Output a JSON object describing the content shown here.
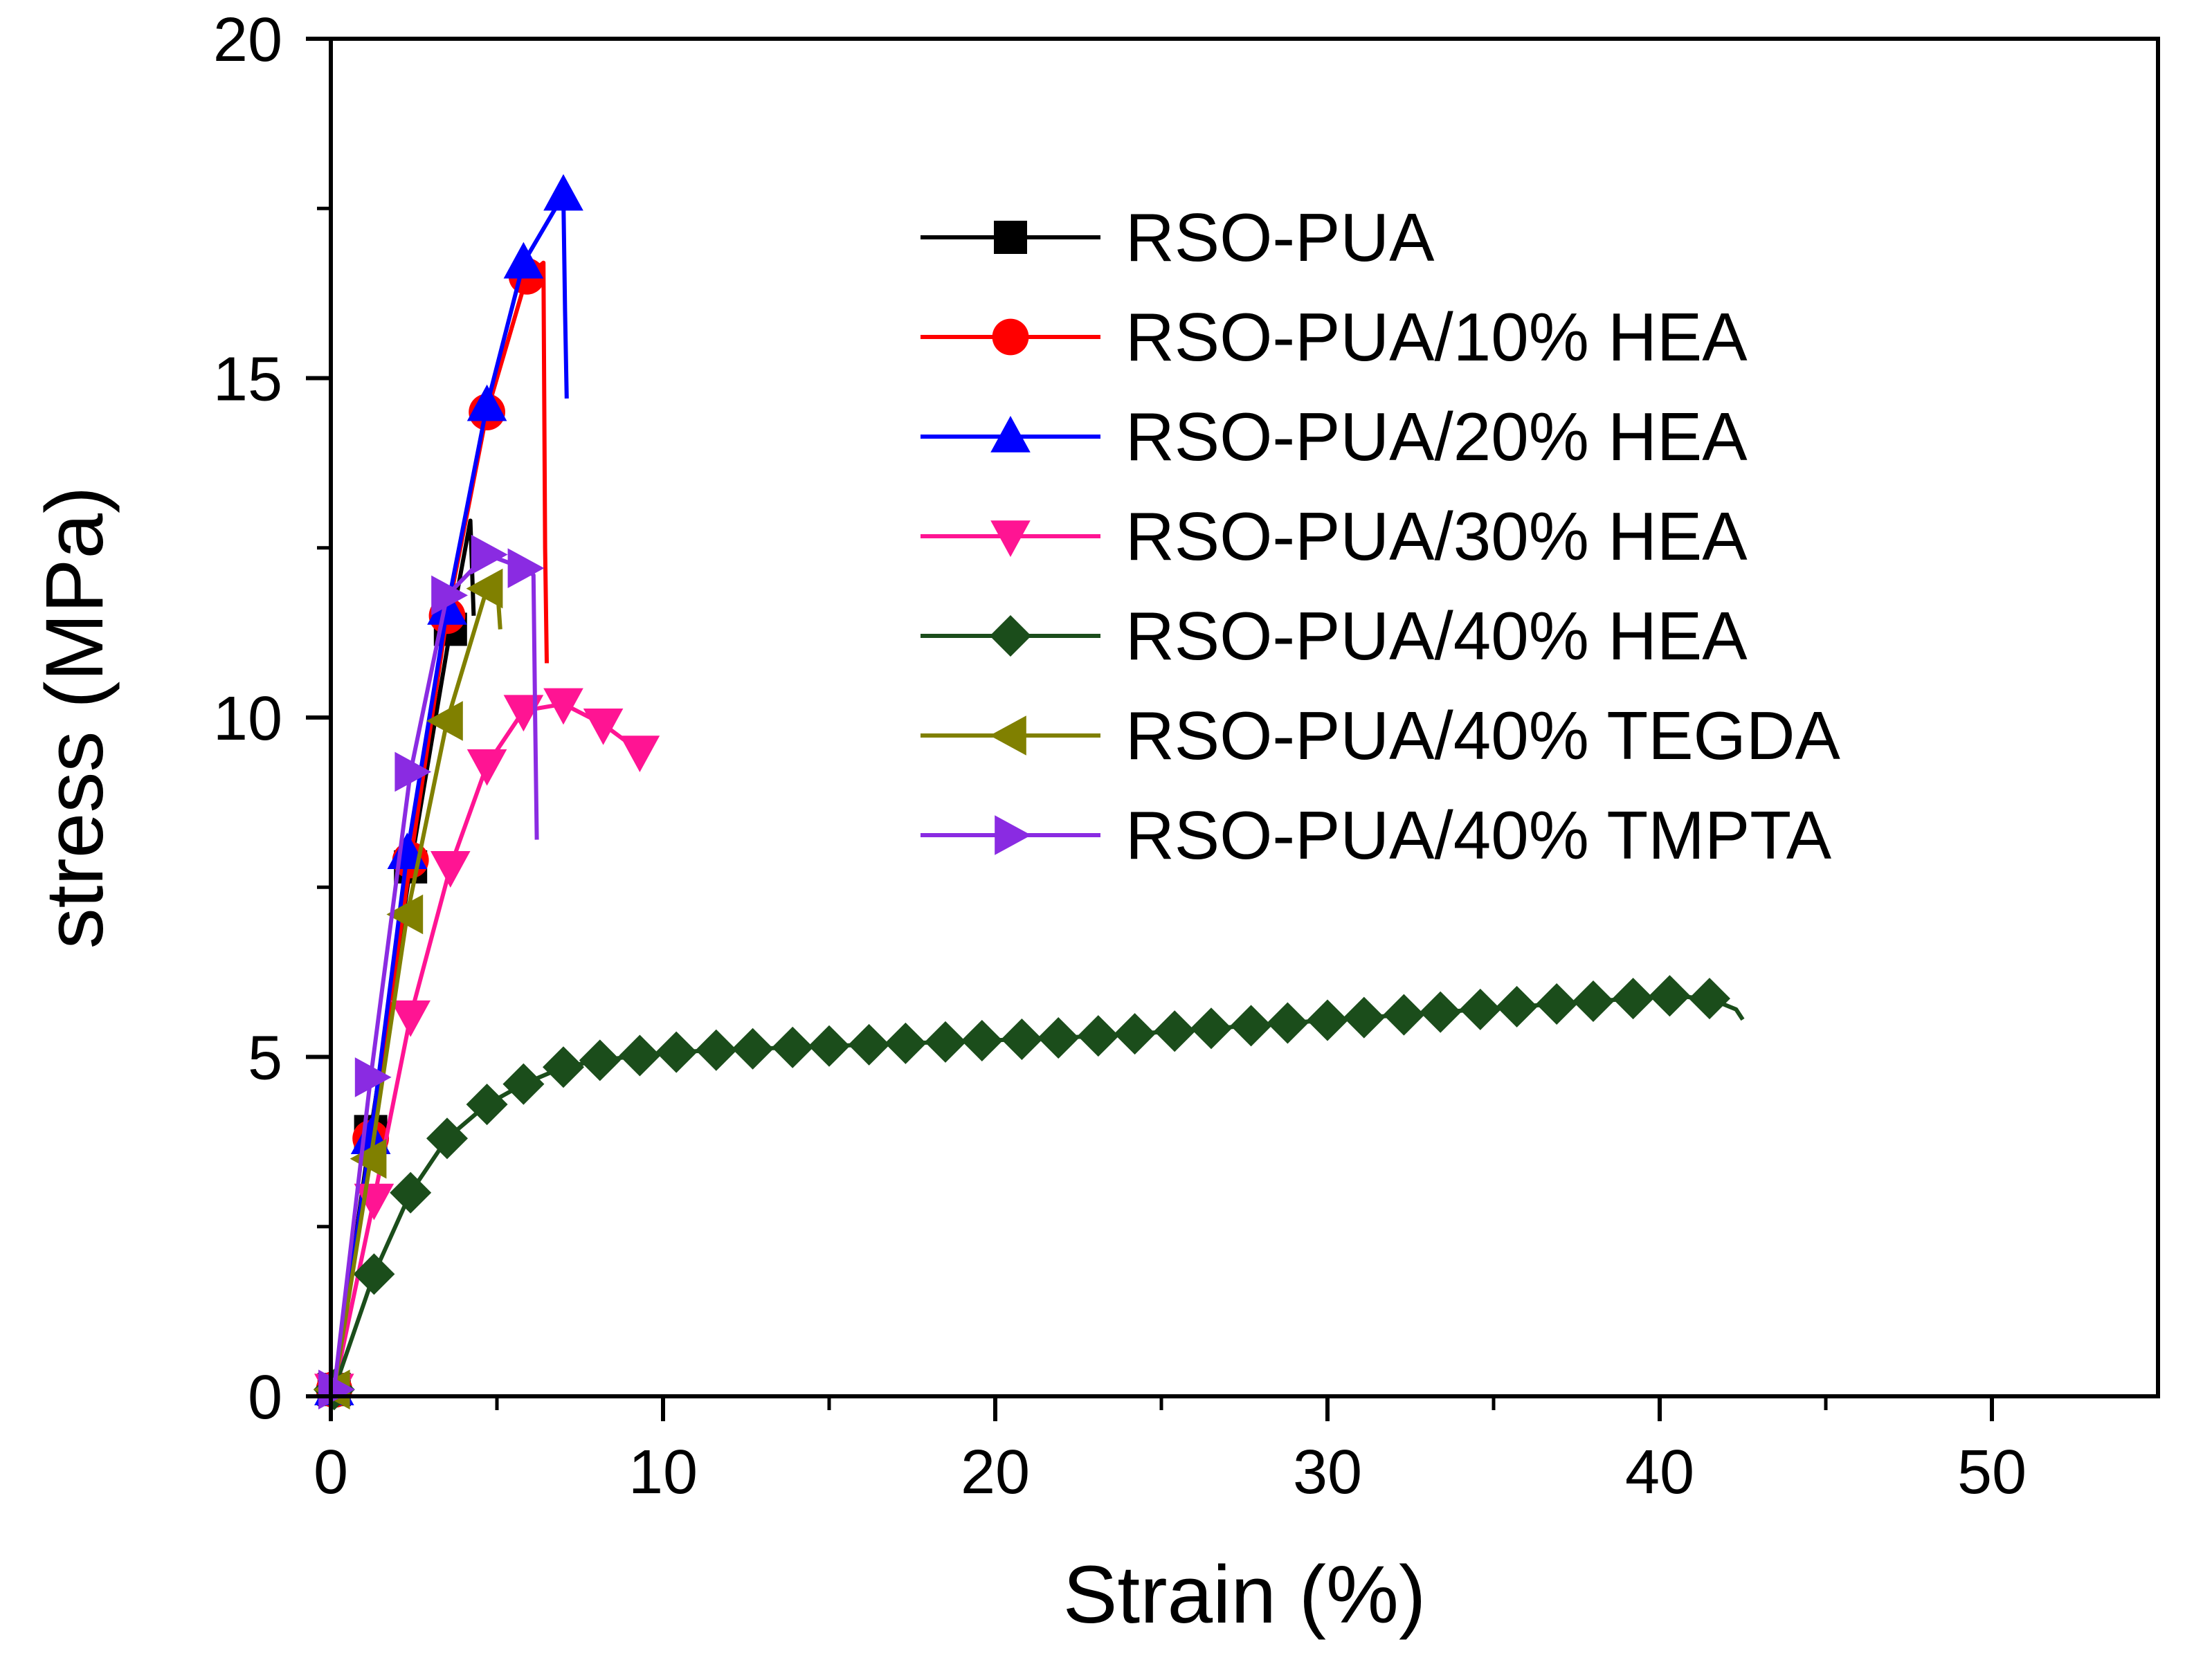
{
  "chart_data": {
    "type": "line",
    "xlabel": "Strain (%)",
    "ylabel": "stress (MPa)",
    "xlim": [
      0,
      55
    ],
    "ylim": [
      0,
      20
    ],
    "xticks": [
      0,
      10,
      20,
      30,
      40,
      50
    ],
    "yticks": [
      0,
      5,
      10,
      15,
      20
    ],
    "legend_position": "top-right",
    "grid": false,
    "series": [
      {
        "name": "RSO-PUA",
        "color": "#000000",
        "marker": "square",
        "x": [
          0.1,
          1.2,
          2.4,
          3.6,
          4.2,
          4.3
        ],
        "y": [
          0.1,
          3.9,
          7.8,
          11.3,
          12.9,
          11.5
        ],
        "marker_x": [
          0.1,
          1.2,
          2.4,
          3.6
        ],
        "marker_y": [
          0.1,
          3.9,
          7.8,
          11.3
        ]
      },
      {
        "name": "RSO-PUA/10% HEA",
        "color": "#ff0000",
        "marker": "circle",
        "x": [
          0.1,
          1.2,
          2.4,
          3.5,
          4.7,
          5.9,
          6.4,
          6.45,
          6.5
        ],
        "y": [
          0.1,
          3.8,
          7.9,
          11.5,
          14.5,
          16.5,
          16.7,
          12.5,
          10.8
        ],
        "marker_x": [
          0.1,
          1.2,
          2.4,
          3.5,
          4.7,
          5.9
        ],
        "marker_y": [
          0.1,
          3.8,
          7.9,
          11.5,
          14.5,
          16.5
        ]
      },
      {
        "name": "RSO-PUA/20% HEA",
        "color": "#0000ff",
        "marker": "triangle-up",
        "x": [
          0.1,
          1.2,
          2.3,
          3.5,
          4.7,
          5.8,
          7.0,
          7.05,
          7.1
        ],
        "y": [
          0.1,
          3.8,
          8.0,
          11.6,
          14.6,
          16.7,
          17.7,
          16.0,
          14.7
        ],
        "marker_x": [
          0.1,
          1.2,
          2.3,
          3.5,
          4.7,
          5.8,
          7.0
        ],
        "marker_y": [
          0.1,
          3.8,
          8.0,
          11.6,
          14.6,
          16.7,
          17.7
        ]
      },
      {
        "name": "RSO-PUA/30% HEA",
        "color": "#ff1493",
        "marker": "triangle-down",
        "x": [
          0.1,
          1.3,
          2.4,
          3.6,
          4.7,
          5.8,
          7.0,
          8.2,
          9.3
        ],
        "y": [
          0.1,
          2.9,
          5.6,
          7.8,
          9.3,
          10.1,
          10.2,
          9.9,
          9.5
        ],
        "marker_x": [
          0.1,
          1.3,
          2.4,
          3.6,
          4.7,
          5.8,
          7.0,
          8.2,
          9.3
        ],
        "marker_y": [
          0.1,
          2.9,
          5.6,
          7.8,
          9.3,
          10.1,
          10.2,
          9.9,
          9.5
        ]
      },
      {
        "name": "RSO-PUA/40% HEA",
        "color": "#1b4d1b",
        "marker": "diamond",
        "x": [
          0.1,
          1.3,
          2.4,
          3.5,
          4.7,
          5.8,
          7.0,
          8.1,
          9.3,
          10.4,
          11.6,
          12.7,
          13.9,
          15.0,
          16.2,
          17.3,
          18.5,
          19.6,
          20.8,
          21.9,
          23.1,
          24.2,
          25.4,
          26.5,
          27.7,
          28.8,
          30.0,
          31.1,
          32.3,
          33.4,
          34.6,
          35.7,
          36.9,
          38.0,
          39.2,
          40.3,
          41.5,
          42.3,
          42.5
        ],
        "y": [
          0.1,
          1.8,
          3.0,
          3.8,
          4.3,
          4.6,
          4.85,
          4.95,
          5.02,
          5.07,
          5.1,
          5.12,
          5.14,
          5.16,
          5.18,
          5.2,
          5.22,
          5.24,
          5.26,
          5.28,
          5.31,
          5.34,
          5.38,
          5.42,
          5.46,
          5.5,
          5.54,
          5.58,
          5.62,
          5.66,
          5.7,
          5.74,
          5.78,
          5.82,
          5.86,
          5.9,
          5.86,
          5.7,
          5.55
        ],
        "marker_x": [
          0.1,
          1.3,
          2.4,
          3.5,
          4.7,
          5.8,
          7.0,
          8.1,
          9.3,
          10.4,
          11.6,
          12.7,
          13.9,
          15.0,
          16.2,
          17.3,
          18.5,
          19.6,
          20.8,
          21.9,
          23.1,
          24.2,
          25.4,
          26.5,
          27.7,
          28.8,
          30.0,
          31.1,
          32.3,
          33.4,
          34.6,
          35.7,
          36.9,
          38.0,
          39.2,
          40.3,
          41.5
        ],
        "marker_y": [
          0.1,
          1.8,
          3.0,
          3.8,
          4.3,
          4.6,
          4.85,
          4.95,
          5.02,
          5.07,
          5.1,
          5.12,
          5.14,
          5.16,
          5.18,
          5.2,
          5.22,
          5.24,
          5.26,
          5.28,
          5.31,
          5.34,
          5.38,
          5.42,
          5.46,
          5.5,
          5.54,
          5.58,
          5.62,
          5.66,
          5.7,
          5.74,
          5.78,
          5.82,
          5.86,
          5.9,
          5.86
        ]
      },
      {
        "name": "RSO-PUA/40% TEGDA",
        "color": "#808000",
        "marker": "triangle-left",
        "x": [
          0.1,
          1.2,
          2.3,
          3.5,
          4.7,
          5.0,
          5.1
        ],
        "y": [
          0.1,
          3.5,
          7.1,
          9.95,
          11.9,
          12.0,
          11.3
        ],
        "marker_x": [
          0.1,
          1.2,
          2.3,
          3.5,
          4.7
        ],
        "marker_y": [
          0.1,
          3.5,
          7.1,
          9.95,
          11.9
        ]
      },
      {
        "name": "RSO-PUA/40% TMPTA",
        "color": "#8a2be2",
        "marker": "triangle-right",
        "x": [
          0.1,
          1.2,
          2.4,
          3.5,
          4.7,
          5.8,
          6.1,
          6.15,
          6.2
        ],
        "y": [
          0.1,
          4.7,
          9.2,
          11.8,
          12.4,
          12.2,
          12.1,
          10.0,
          8.2
        ],
        "marker_x": [
          0.1,
          1.2,
          2.4,
          3.5,
          4.7,
          5.8
        ],
        "marker_y": [
          0.1,
          4.7,
          9.2,
          11.8,
          12.4,
          12.2
        ]
      }
    ]
  }
}
